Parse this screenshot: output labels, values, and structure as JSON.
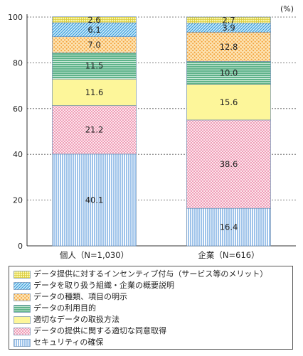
{
  "chart_data": {
    "type": "bar",
    "stacked": true,
    "orientation": "vertical",
    "unit_label": "(%)",
    "ylim": [
      0,
      100
    ],
    "yticks": [
      0,
      20,
      40,
      60,
      80,
      100
    ],
    "categories": [
      "個人（N=1,030）",
      "企業（N=616）"
    ],
    "series": [
      {
        "name": "セキュリティの確保",
        "values": [
          40.1,
          16.4
        ],
        "color": "#9ec3ea",
        "pattern": "vlines"
      },
      {
        "name": "データの提供に関する適切な同意取得",
        "values": [
          21.2,
          38.6
        ],
        "color": "#f7d6e0",
        "pattern": "dots-pink"
      },
      {
        "name": "適切なデータの取扱方法",
        "values": [
          11.6,
          15.6
        ],
        "color": "#fdf69a",
        "pattern": "solid"
      },
      {
        "name": "データの利用目的",
        "values": [
          11.5,
          10.0
        ],
        "color": "#7fc6a4",
        "pattern": "hlines"
      },
      {
        "name": "データの種類、項目の明示",
        "values": [
          7.0,
          12.8
        ],
        "color": "#fbd58a",
        "pattern": "dots-orange"
      },
      {
        "name": "データを取り扱う組織・企業の概要説明",
        "values": [
          6.1,
          3.9
        ],
        "color": "#8ecbef",
        "pattern": "diag"
      },
      {
        "name": "データ提供に対するインセンティブ付与（サービス等のメリット）",
        "values": [
          2.6,
          2.7
        ],
        "color": "#fbf7a8",
        "pattern": "grid"
      }
    ],
    "legend_order": [
      6,
      5,
      4,
      3,
      2,
      1,
      0
    ],
    "legend_position": "bottom"
  }
}
